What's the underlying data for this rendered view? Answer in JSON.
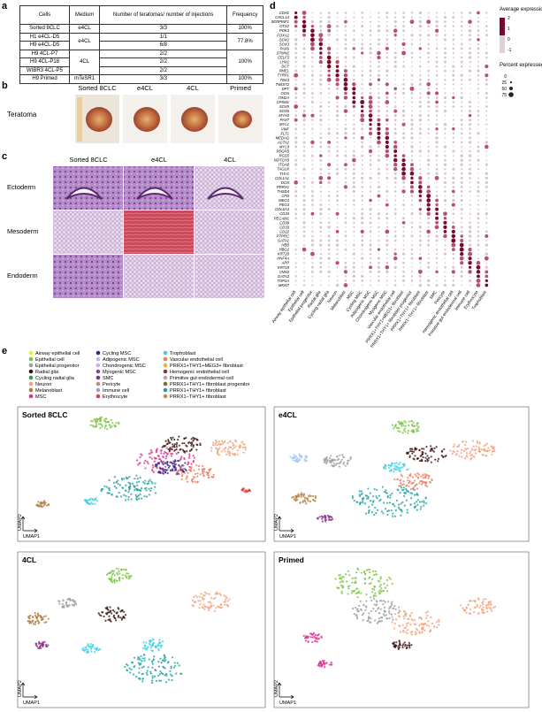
{
  "panels": {
    "a": "a",
    "b": "b",
    "c": "c",
    "d": "d",
    "e": "e"
  },
  "table": {
    "header": [
      "Cells",
      "Medium",
      "Number of teratomas/ number of injections",
      "Frequency"
    ],
    "cells": [
      [
        "Sorted 8CLC",
        "3/3"
      ],
      [
        "H1 e4CL-D5",
        "1/1"
      ],
      [
        "H9 e4CL-D5",
        "6/8"
      ],
      [
        "H9 4CL-P7",
        "2/2"
      ],
      [
        "H9 4CL-P18",
        "2/2"
      ],
      [
        "WIBR3 4CL-P5",
        "2/2"
      ],
      [
        "H9 Primed",
        "3/3"
      ]
    ],
    "mediums": [
      "e4CL",
      "e4CL",
      "4CL",
      "mTeSR1"
    ],
    "frequencies": [
      "100%",
      "77.8%",
      "100%",
      "100%"
    ]
  },
  "teratoma": {
    "label": "Teratoma",
    "columns": [
      "Sorted 8CLC",
      "e4CL",
      "4CL",
      "Primed"
    ]
  },
  "histology": {
    "columns": [
      "Sorted 8CLC",
      "e4CL",
      "4CL"
    ],
    "rows": [
      "Ectoderm",
      "Mesoderm",
      "Endoderm"
    ]
  },
  "dotplot": {
    "genes": [
      "CDH1",
      "CXCL14",
      "SERPINF1",
      "OTX2",
      "PDK3",
      "FOXA2",
      "SOX2",
      "SOX3",
      "PAX6",
      "STMN2",
      "CELF3",
      "LHX1",
      "DCT",
      "PMEL",
      "TYRP1",
      "TBX3",
      "TWIST2",
      "DPT",
      "OGN",
      "ITM2A",
      "CPXM1",
      "SOX5",
      "SOX6",
      "MYH3",
      "PAX7",
      "MYL1",
      "VWF",
      "FLT1",
      "MEDAG",
      "ACTA2",
      "MYL9",
      "PDGFB",
      "RGS5",
      "NOTCH3",
      "ITGA8",
      "TAGLN",
      "THY1",
      "COL1A1",
      "DCN",
      "PRRX1",
      "THSD4",
      "CFD",
      "MEG3",
      "PEG3",
      "COL6A3",
      "CD34",
      "PECAM1",
      "CD99",
      "CD33",
      "CD22",
      "PTPRC",
      "GATA1",
      "HBB",
      "HBG2",
      "KRT20",
      "HNF4A",
      "APP",
      "KRT19",
      "VNN3",
      "GATA3",
      "TOP2A",
      "MKI67"
    ],
    "cell_types": [
      "Airway epithelial cell",
      "Epithelial cell",
      "Epithelial progenitor",
      "Radial glia",
      "Cycling radial glia",
      "Neuron",
      "Melanoblast",
      "MSC",
      "Cycling MSC",
      "Adipogenic MSC",
      "Chondrogenic MSC",
      "Myogenic MSC",
      "Vascular endothelial cell",
      "PRRX1+THY1+MEG3+ fibroblast",
      "PRRX1+THY1+ fibroblast progenitor",
      "PRRX1+THY1+ fibroblast",
      "PRRX1−THY1+ fibroblast",
      "SMC",
      "Pericyte",
      "Hemogenic endothelial cell",
      "Primitive gut endodermal cell",
      "Immune cell",
      "Erythrocyte",
      "Trophoblast"
    ],
    "expression_title": "Average expression",
    "expression_ticks": [
      2,
      1,
      0,
      -1
    ],
    "percent_title": "Percent expressed",
    "percent_ticks": [
      0,
      25,
      50,
      75
    ]
  },
  "umap": {
    "legend": [
      {
        "name": "Airway epithelial cell",
        "color": "#f2ef1a"
      },
      {
        "name": "Epithelial cell",
        "color": "#7dc242"
      },
      {
        "name": "Epithelial progenitor",
        "color": "#9c9c9c"
      },
      {
        "name": "Radial glia",
        "color": "#3b1414"
      },
      {
        "name": "Cycling radial glia",
        "color": "#3a9a4a"
      },
      {
        "name": "Neuron",
        "color": "#f0a07a"
      },
      {
        "name": "Melanoblast",
        "color": "#b07a3a"
      },
      {
        "name": "MSC",
        "color": "#e0308f"
      },
      {
        "name": "Cycling MSC",
        "color": "#2a2a8a"
      },
      {
        "name": "Adipogenic MSC",
        "color": "#a0c8ee"
      },
      {
        "name": "Chondrogenic MSC",
        "color": "#c8b0e0"
      },
      {
        "name": "Myogenic MSC",
        "color": "#7a4fa0"
      },
      {
        "name": "SMC",
        "color": "#8a2a8a"
      },
      {
        "name": "Pericyte",
        "color": "#b09870"
      },
      {
        "name": "Immune cell",
        "color": "#a0a0d0"
      },
      {
        "name": "Erythrocyte",
        "color": "#e04040"
      },
      {
        "name": "Trophoblast",
        "color": "#40d0e0"
      },
      {
        "name": "Vascular endothelial cell",
        "color": "#e88060"
      },
      {
        "name": "PRRX1+THY1+MEG3+ fibroblast",
        "color": "#f0b030"
      },
      {
        "name": "Hemogenic endothelial cell",
        "color": "#a03030"
      },
      {
        "name": "Primitive gut endodermal cell",
        "color": "#c0a0b0"
      },
      {
        "name": "PRRX1+THY1+ fibroblast progenitor",
        "color": "#7a7030"
      },
      {
        "name": "PRRX1+THY1+ fibroblast",
        "color": "#20a0a0"
      },
      {
        "name": "PRRX1−THY1+ fibroblast",
        "color": "#c09040"
      }
    ],
    "plots": [
      "Sorted 8CLC",
      "e4CL",
      "4CL",
      "Primed"
    ],
    "x_label": "UMAP1",
    "y_label": "UMAP2"
  }
}
